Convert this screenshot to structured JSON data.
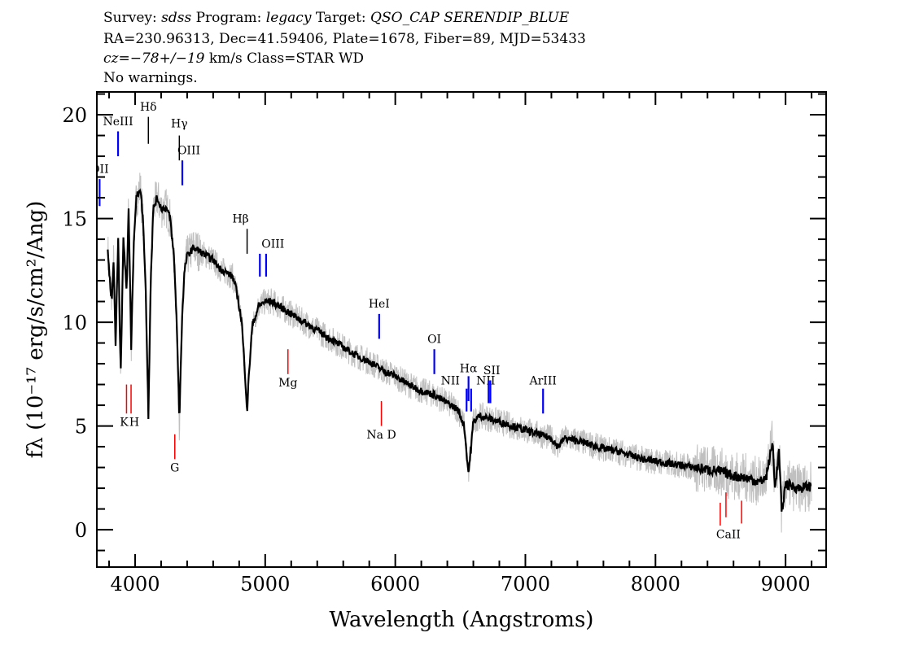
{
  "header": {
    "line1": {
      "survey_label": "Survey:",
      "survey": "sdss",
      "program_label": "Program:",
      "program": "legacy",
      "target_label": "Target:",
      "target": "QSO_CAP SERENDIP_BLUE"
    },
    "line2": "RA=230.96313, Dec=41.59406, Plate=1678, Fiber=89, MJD=53433",
    "line3": {
      "cz": "cz=−78+/−19",
      "rest": " km/s Class=STAR WD"
    },
    "line4": "No warnings."
  },
  "chart_data": {
    "type": "line",
    "xlabel": "Wavelength (Angstroms)",
    "ylabel": "fλ (10⁻¹⁷ erg/s/cm²/Ang)",
    "xlim": [
      3706,
      9312
    ],
    "ylim": [
      -1.8,
      21.1
    ],
    "xticks": [
      4000,
      5000,
      6000,
      7000,
      8000,
      9000
    ],
    "yticks": [
      0,
      5,
      10,
      15,
      20
    ],
    "grid": false,
    "colors": {
      "flux": "#000000",
      "raw": "#c0c0c0",
      "emission": "#0000ff",
      "absorption": "#ff0000",
      "balmer": "#000000"
    },
    "series": [
      {
        "x": [
          3790,
          3800,
          3820,
          3835,
          3850,
          3870,
          3889,
          3910,
          3935,
          3950,
          3970,
          3990,
          4010,
          4040,
          4060,
          4080,
          4102,
          4120,
          4140,
          4170,
          4200,
          4240,
          4270,
          4300,
          4320,
          4340,
          4360,
          4380,
          4400,
          4450,
          4500,
          4550,
          4600,
          4650,
          4700,
          4750,
          4780,
          4820,
          4850,
          4861,
          4875,
          4900,
          4950,
          5000,
          5050,
          5100,
          5200,
          5300,
          5400,
          5500,
          5600,
          5700,
          5800,
          5900,
          6000,
          6100,
          6200,
          6300,
          6400,
          6480,
          6530,
          6555,
          6563,
          6575,
          6600,
          6650,
          6700,
          6800,
          6900,
          7000,
          7100,
          7200,
          7250,
          7300,
          7400,
          7500,
          7600,
          7700,
          7800,
          7900,
          8000,
          8100,
          8200,
          8300,
          8400,
          8500,
          8600,
          8700,
          8800,
          8850,
          8900,
          8920,
          8950,
          8970,
          9000,
          9100,
          9200
        ],
        "y": [
          13.5,
          12.5,
          11,
          13,
          9,
          14,
          7.5,
          14,
          11.5,
          15.5,
          8.8,
          14,
          16,
          16.5,
          15,
          12,
          5.5,
          12,
          15.5,
          16,
          15.5,
          15.5,
          15,
          13,
          10,
          5.3,
          10,
          12.5,
          13.2,
          13.6,
          13.4,
          13.2,
          13,
          12.6,
          12.4,
          12.2,
          11.5,
          10,
          7,
          5.7,
          7.5,
          9.8,
          10.8,
          11,
          11,
          10.8,
          10.4,
          10,
          9.6,
          9.2,
          8.8,
          8.4,
          8.1,
          7.7,
          7.4,
          7.0,
          6.7,
          6.5,
          6.1,
          5.8,
          5.0,
          3.2,
          2.7,
          3.5,
          5.2,
          5.5,
          5.4,
          5.2,
          5.0,
          4.8,
          4.6,
          4.4,
          4.0,
          4.4,
          4.3,
          4.1,
          3.9,
          3.8,
          3.6,
          3.4,
          3.3,
          3.2,
          3.1,
          3.0,
          2.9,
          2.8,
          2.6,
          2.5,
          2.3,
          2.5,
          4.2,
          2.0,
          3.8,
          0.8,
          2.2,
          2.0,
          2.1
        ]
      }
    ],
    "lines": [
      {
        "label": "OII",
        "wave": 3727,
        "type": "emission",
        "y": [
          15.6,
          16.9
        ],
        "label_y": 17.2
      },
      {
        "label": "NeIII",
        "wave": 3869,
        "type": "emission",
        "y": [
          18.0,
          19.2
        ],
        "label_y": 19.5
      },
      {
        "label": "Hδ",
        "wave": 4102,
        "type": "balmer",
        "y": [
          18.6,
          19.9
        ],
        "label_y": 20.2
      },
      {
        "label": "Hγ",
        "wave": 4340,
        "type": "balmer",
        "y": [
          17.8,
          19.0
        ],
        "label_y": 19.4
      },
      {
        "label": "OIII",
        "wave": 4363,
        "type": "emission",
        "y": [
          16.6,
          17.8
        ],
        "label_y": 18.1,
        "dx": 8
      },
      {
        "label": "Hβ",
        "wave": 4861,
        "type": "balmer",
        "y": [
          13.3,
          14.5
        ],
        "label_y": 14.8,
        "dx": -8
      },
      {
        "label": "OIII",
        "wave": 4959,
        "type": "emission",
        "y": [
          12.2,
          13.3
        ],
        "label_y": 13.6,
        "dx": 16
      },
      {
        "label": "",
        "wave": 5007,
        "type": "emission",
        "y": [
          12.2,
          13.3
        ]
      },
      {
        "label": "Mg",
        "wave": 5175,
        "type": "absorption",
        "y": [
          7.5,
          8.7
        ],
        "label_y": 6.9,
        "below": true
      },
      {
        "label": "HeI",
        "wave": 5876,
        "type": "emission",
        "y": [
          9.2,
          10.4
        ],
        "label_y": 10.7
      },
      {
        "label": "Na D",
        "wave": 5893,
        "type": "absorption",
        "y": [
          5.0,
          6.2
        ],
        "label_y": 4.4,
        "below": true
      },
      {
        "label": "OI",
        "wave": 6300,
        "type": "emission",
        "y": [
          7.5,
          8.7
        ],
        "label_y": 9.0
      },
      {
        "label": "NII",
        "wave": 6548,
        "type": "emission",
        "y": [
          5.7,
          6.8
        ],
        "label_y": 7.0,
        "dx": -20
      },
      {
        "label": "Hα",
        "wave": 6563,
        "type": "emission",
        "y": [
          6.2,
          7.4
        ],
        "label_y": 7.6
      },
      {
        "label": "NII",
        "wave": 6583,
        "type": "emission",
        "y": [
          5.7,
          6.8
        ],
        "label_y": 7.0,
        "dx": 18
      },
      {
        "label": "SII",
        "wave": 6717,
        "type": "emission",
        "y": [
          6.1,
          7.2
        ],
        "label_y": 7.5,
        "dx": 4
      },
      {
        "label": "",
        "wave": 6731,
        "type": "emission",
        "y": [
          6.1,
          7.2
        ]
      },
      {
        "label": "ArIII",
        "wave": 7136,
        "type": "emission",
        "y": [
          5.6,
          6.8
        ],
        "label_y": 7.0
      },
      {
        "label": "K",
        "wave": 3934,
        "type": "absorption",
        "y": [
          5.6,
          7.0
        ],
        "label_y": 5.0,
        "below": true,
        "dx": -3
      },
      {
        "label": "H",
        "wave": 3969,
        "type": "absorption",
        "y": [
          5.6,
          7.0
        ],
        "label_y": 5.0,
        "below": true,
        "dx": 4
      },
      {
        "label": "G",
        "wave": 4305,
        "type": "absorption",
        "y": [
          3.4,
          4.6
        ],
        "label_y": 2.8,
        "below": true
      },
      {
        "label": "CaII",
        "wave": 8498,
        "type": "absorption",
        "y": [
          0.2,
          1.3
        ],
        "label_y": -0.4,
        "below": true,
        "dx": 10
      },
      {
        "label": "",
        "wave": 8542,
        "type": "absorption",
        "y": [
          0.6,
          1.8
        ]
      },
      {
        "label": "",
        "wave": 8662,
        "type": "absorption",
        "y": [
          0.3,
          1.4
        ]
      }
    ]
  }
}
